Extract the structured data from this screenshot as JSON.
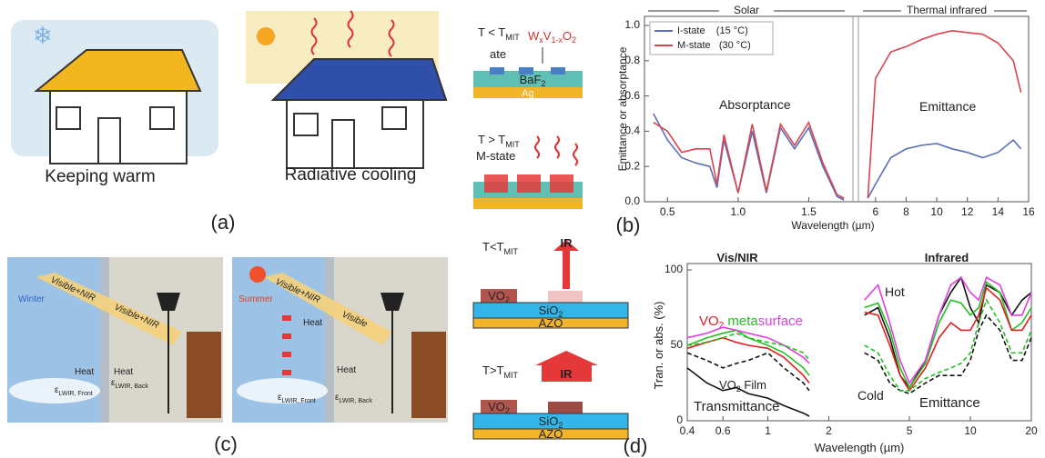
{
  "panels": {
    "a": {
      "captions": [
        "Keeping warm",
        "Radiative cooling"
      ],
      "label": "(a)"
    },
    "b_schematic": {
      "cold": {
        "text": "T < T",
        "sub": "MIT"
      },
      "formula": [
        "W",
        "x",
        "V",
        "1-x",
        "O",
        "2"
      ],
      "state_cold": "ate",
      "layer_top": [
        "BaF",
        "2"
      ],
      "layer_bottom": "Ag",
      "hot": {
        "text": "T > T",
        "sub": "MIT"
      },
      "state_hot": "M-state"
    },
    "c": {
      "seasons": [
        "Winter",
        "Summer"
      ],
      "beams": [
        "Visible+NIR",
        "Visible+NIR",
        "Visible+NIR",
        "Visible"
      ],
      "heat": [
        "Heat",
        "Heat",
        "Heat",
        "Heat"
      ],
      "emissivity": [
        {
          "symbol": "ε",
          "sub": "LWIR, Front"
        },
        {
          "symbol": "ε",
          "sub": "LWIR, Back"
        },
        {
          "symbol": "ε",
          "sub": "LWIR, Front"
        },
        {
          "symbol": "ε",
          "sub": "LWIR, Back"
        }
      ],
      "label": "(c)"
    },
    "d_schematic": {
      "cold": {
        "text": "T<T",
        "sub": "MIT"
      },
      "hot": {
        "text": "T>T",
        "sub": "MIT"
      },
      "ir": [
        "IR",
        "IR"
      ],
      "vo2": [
        [
          "VO",
          "2"
        ],
        [
          "VO",
          "2"
        ]
      ],
      "sio2": [
        [
          "SiO",
          "2"
        ],
        [
          "SiO",
          "2"
        ]
      ],
      "azo": [
        "AZO",
        "AZO"
      ]
    }
  },
  "chart_data": [
    {
      "type": "line",
      "label": "(b)",
      "xlabel": "Wavelength (µm)",
      "ylabel": "Emittance or absorptance",
      "regions": [
        "Solar",
        "Thermal infrared"
      ],
      "annotations": [
        "Absorptance",
        "Emittance"
      ],
      "x_segments": [
        {
          "xlim": [
            0.35,
            1.8
          ],
          "xticks": [
            0.5,
            {
              "value": 1,
              "label": "1.0"
            },
            1.5
          ]
        },
        {
          "xlim": [
            5,
            16
          ],
          "xticks": [
            6,
            8,
            10,
            12,
            14,
            16
          ]
        }
      ],
      "ylim": [
        0,
        1
      ],
      "yticks": [
        {
          "value": 0,
          "label": "0.0"
        },
        0.2,
        0.4,
        0.6,
        0.8,
        {
          "value": 1,
          "label": "1.0"
        }
      ],
      "legend": "upper left",
      "x": [
        0.4,
        0.5,
        0.6,
        0.7,
        0.8,
        0.85,
        0.9,
        1.0,
        1.1,
        1.2,
        1.3,
        1.4,
        1.5,
        1.6,
        1.7,
        1.75,
        1.8,
        5.5,
        6,
        7,
        8,
        9,
        10,
        11,
        12,
        13,
        14,
        15,
        15.5
      ],
      "series": [
        {
          "name": "I-state    (15 °C)",
          "color": "#5a6fb8",
          "values": [
            0.5,
            0.35,
            0.25,
            0.22,
            0.2,
            0.08,
            0.35,
            0.05,
            0.4,
            0.05,
            0.42,
            0.3,
            0.42,
            0.2,
            0.03,
            0.01,
            null,
            0.02,
            0.1,
            0.25,
            0.3,
            0.32,
            0.33,
            0.3,
            0.28,
            0.25,
            0.28,
            0.35,
            0.3
          ]
        },
        {
          "name": "M-state   (30 °C)",
          "color": "#d9454f",
          "values": [
            0.45,
            0.4,
            0.28,
            0.3,
            0.3,
            0.1,
            0.38,
            0.05,
            0.44,
            0.06,
            0.44,
            0.32,
            0.45,
            0.22,
            0.04,
            0.02,
            null,
            0.02,
            0.7,
            0.85,
            0.88,
            0.92,
            0.95,
            0.97,
            0.96,
            0.95,
            0.9,
            0.8,
            0.62
          ]
        }
      ]
    },
    {
      "type": "line",
      "label": "(d)",
      "xlog": true,
      "xlabel": "Wavelength (µm)",
      "ylabel": "Tran. or abs. (%)",
      "titles": [
        "Vis/NIR",
        "Infrared"
      ],
      "annotations": {
        "material": [
          "VO",
          "2",
          " meta",
          "surface"
        ],
        "film": [
          "VO",
          "2",
          " Film"
        ],
        "transmittance": "Transmittance",
        "hot": "Hot",
        "cold": "Cold",
        "emittance": "Emittance"
      },
      "xlim": [
        0.4,
        20
      ],
      "xticks": [
        0.4,
        0.6,
        1,
        2,
        5,
        10,
        20
      ],
      "ylim": [
        0,
        100
      ],
      "yticks": [
        0,
        50,
        100
      ],
      "x": [
        0.4,
        0.5,
        0.6,
        0.7,
        0.8,
        1,
        1.2,
        1.5,
        1.6,
        2.5,
        3,
        3.5,
        4,
        4.5,
        5,
        6,
        7,
        8,
        9,
        10,
        11,
        12,
        14,
        16,
        18,
        20
      ],
      "series": [
        {
          "color": "#111111",
          "values": [
            35,
            25,
            20,
            22,
            18,
            15,
            10,
            5,
            3,
            null,
            70,
            75,
            55,
            30,
            22,
            40,
            70,
            85,
            95,
            75,
            65,
            90,
            85,
            70,
            80,
            85
          ]
        },
        {
          "color": "#22c022",
          "values": [
            50,
            55,
            58,
            60,
            55,
            50,
            45,
            35,
            30,
            null,
            75,
            78,
            60,
            35,
            22,
            38,
            65,
            80,
            78,
            70,
            75,
            92,
            85,
            60,
            65,
            75
          ]
        },
        {
          "color": "#e02020",
          "values": [
            48,
            52,
            55,
            52,
            50,
            48,
            42,
            30,
            25,
            null,
            72,
            70,
            50,
            30,
            20,
            35,
            55,
            65,
            60,
            60,
            70,
            88,
            80,
            60,
            60,
            70
          ]
        },
        {
          "color": "#e040e0",
          "values": [
            55,
            58,
            62,
            60,
            58,
            55,
            50,
            42,
            38,
            null,
            80,
            90,
            65,
            40,
            25,
            40,
            70,
            90,
            95,
            85,
            80,
            95,
            90,
            70,
            70,
            85
          ]
        },
        {
          "color": "#111111",
          "dash": true,
          "values": [
            45,
            40,
            35,
            38,
            40,
            45,
            35,
            25,
            20,
            null,
            45,
            40,
            25,
            20,
            18,
            25,
            30,
            30,
            30,
            40,
            60,
            70,
            60,
            40,
            40,
            55
          ]
        },
        {
          "color": "#22c022",
          "dash": true,
          "values": [
            50,
            52,
            55,
            58,
            55,
            52,
            50,
            45,
            40,
            null,
            50,
            45,
            30,
            20,
            20,
            28,
            32,
            35,
            38,
            45,
            65,
            80,
            65,
            45,
            45,
            60
          ]
        }
      ]
    }
  ]
}
